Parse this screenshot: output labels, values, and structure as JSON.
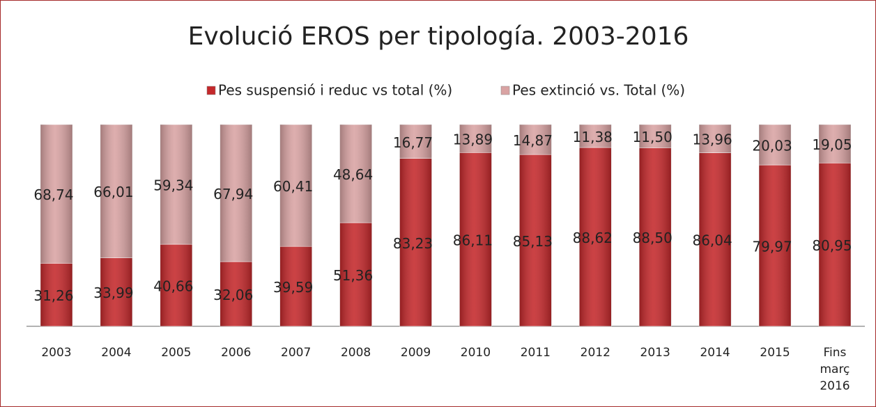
{
  "chart_data": {
    "type": "bar",
    "stacked": true,
    "title": "Evolució EROS per tipología. 2003-2016",
    "categories": [
      "2003",
      "2004",
      "2005",
      "2006",
      "2007",
      "2008",
      "2009",
      "2010",
      "2011",
      "2012",
      "2013",
      "2014",
      "2015",
      "Fins març 2016"
    ],
    "ylim": [
      0,
      100
    ],
    "legend": "top",
    "series": [
      {
        "name": "Pes suspensió i reduc vs total (%)",
        "color": "#c4282b",
        "values": [
          31.26,
          33.99,
          40.66,
          32.06,
          39.59,
          51.36,
          83.23,
          86.11,
          85.13,
          88.62,
          88.5,
          86.04,
          79.97,
          80.95
        ],
        "value_labels": [
          "31,26",
          "33,99",
          "40,66",
          "32,06",
          "39,59",
          "51,36",
          "83,23",
          "86,11",
          "85,13",
          "88,62",
          "88,50",
          "86,04",
          "79,97",
          "80,95"
        ]
      },
      {
        "name": "Pes extinció vs. Total (%)",
        "color": "#d9a3a3",
        "values": [
          68.74,
          66.01,
          59.34,
          67.94,
          60.41,
          48.64,
          16.77,
          13.89,
          14.87,
          11.38,
          11.5,
          13.96,
          20.03,
          19.05
        ],
        "value_labels": [
          "68,74",
          "66,01",
          "59,34",
          "67,94",
          "60,41",
          "48,64",
          "16,77",
          "13,89",
          "14,87",
          "11,38",
          "11,50",
          "13,96",
          "20,03",
          "19,05"
        ]
      }
    ]
  }
}
